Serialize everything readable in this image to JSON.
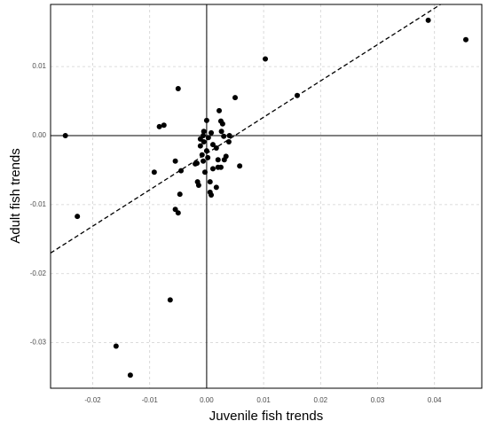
{
  "chart_data": {
    "type": "scatter",
    "x_label": "Juvenile fish trends",
    "y_label": "Adult fish trends",
    "xlim": [
      -0.0274,
      0.0483
    ],
    "ylim": [
      -0.0366,
      0.019
    ],
    "xticks": [
      -0.02,
      -0.01,
      {
        "value": 0,
        "label": "0.00"
      },
      0.01,
      0.02,
      0.03,
      0.04
    ],
    "yticks": [
      -0.03,
      -0.02,
      -0.01,
      {
        "value": 0,
        "label": "0.00"
      },
      0.01
    ],
    "grid": true,
    "color": "#000000",
    "trend": {
      "slope": 0.526,
      "intercept": -0.0026
    },
    "x": [
      -0.0248,
      -0.0227,
      -0.0159,
      -0.0134,
      -0.0064,
      -0.0083,
      -0.0075,
      -0.0092,
      -0.005,
      -0.0055,
      -0.0045,
      -0.0047,
      -0.0055,
      -0.005,
      0.0103,
      0.005,
      0.0159,
      0.0389,
      0.0455,
      0,
      0.0022,
      0.0025,
      0.0028,
      0.0026,
      0.0008,
      -0.0006,
      -0.0011,
      -0.0005,
      0.0003,
      0.0011,
      0.0017,
      0.003,
      0.004,
      0.0039,
      -0.0011,
      -0.0008,
      -0.0017,
      -0.002,
      -0.0006,
      0.0002,
      0.002,
      0.0034,
      0.0031,
      0.0058,
      0.0025,
      0.0011,
      0.002,
      -0.0003,
      0.0006,
      -0.0016,
      -0.0014,
      0.0017,
      0.0006,
      0.0008,
      0,
      -0.0005
    ],
    "y": [
      0,
      -0.0117,
      -0.0305,
      -0.0347,
      -0.0238,
      0.0013,
      0.0015,
      -0.0053,
      0.0068,
      -0.0037,
      -0.0051,
      -0.0085,
      -0.0107,
      -0.0112,
      0.0111,
      0.0055,
      0.0058,
      0.0167,
      0.0139,
      0.0022,
      0.0036,
      0.0021,
      0.0017,
      0.0006,
      0.0004,
      0,
      -0.0005,
      0.0006,
      -0.0003,
      -0.0013,
      -0.0018,
      -0.0001,
      0,
      -0.0009,
      -0.0015,
      -0.0028,
      -0.004,
      -0.0041,
      -0.0037,
      -0.0032,
      -0.0035,
      -0.003,
      -0.0035,
      -0.0044,
      -0.0046,
      -0.0048,
      -0.0046,
      -0.0053,
      -0.0067,
      -0.0067,
      -0.0072,
      -0.0075,
      -0.0082,
      -0.0086,
      -0.0022,
      -0.0009
    ]
  }
}
